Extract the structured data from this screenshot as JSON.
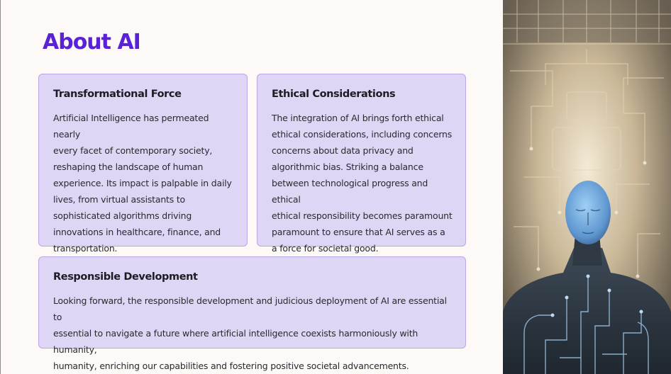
{
  "title": "About AI",
  "cards": [
    {
      "heading": "Transformational Force",
      "lines": [
        "Artificial Intelligence has permeated nearly",
        "every facet of contemporary society,",
        "reshaping the landscape of human",
        "experience. Its impact is palpable in daily",
        "lives, from virtual assistants to",
        "sophisticated algorithms driving",
        "innovations in healthcare, finance, and",
        "transportation."
      ]
    },
    {
      "heading": "Ethical Considerations",
      "lines": [
        "The integration of AI brings forth ethical",
        "ethical considerations, including concerns",
        "concerns about data privacy and",
        "algorithmic bias. Striking a balance",
        "between technological progress and ethical",
        "ethical responsibility becomes paramount",
        "paramount to ensure that AI serves as a",
        "a force for societal good."
      ]
    },
    {
      "heading": "Responsible Development",
      "lines": [
        "Looking forward, the responsible development and judicious deployment of AI are essential to",
        "essential to navigate a future where artificial intelligence coexists harmoniously with humanity,",
        "humanity, enriching our capabilities and fostering positive societal advancements."
      ]
    }
  ],
  "image": {
    "icon": "ai-humanoid-illustration",
    "colors": {
      "background": "#c8b89c",
      "face": "#6fa9e0",
      "body": "#28323d",
      "circuit": "#9bc4e6"
    }
  }
}
